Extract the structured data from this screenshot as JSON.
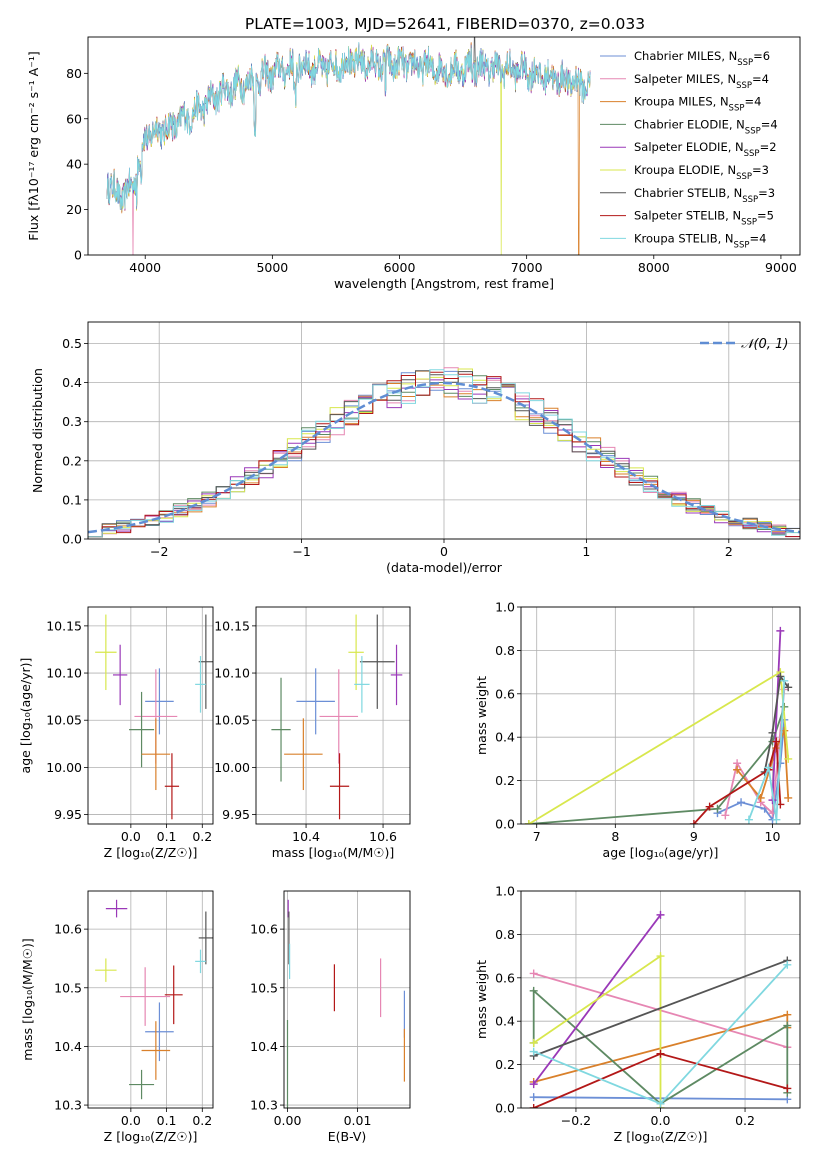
{
  "figure": {
    "title": "PLATE=1003, MJD=52641, FIBERID=0370, z=0.033"
  },
  "models": [
    {
      "name": "Chabrier MILES",
      "nssp": "6",
      "color": "#6c8fd6"
    },
    {
      "name": "Salpeter MILES",
      "nssp": "4",
      "color": "#e687b3"
    },
    {
      "name": "Kroupa MILES",
      "nssp": "4",
      "color": "#d9802b"
    },
    {
      "name": "Chabrier ELODIE",
      "nssp": "4",
      "color": "#5e8a63"
    },
    {
      "name": "Salpeter ELODIE",
      "nssp": "2",
      "color": "#9a38b8"
    },
    {
      "name": "Kroupa ELODIE",
      "nssp": "3",
      "color": "#d8e74d"
    },
    {
      "name": "Chabrier STELIB",
      "nssp": "3",
      "color": "#555555"
    },
    {
      "name": "Salpeter STELIB",
      "nssp": "5",
      "color": "#b31818"
    },
    {
      "name": "Kroupa STELIB",
      "nssp": "4",
      "color": "#80d8e0"
    }
  ],
  "chart_data": [
    {
      "id": "spectrum",
      "type": "line",
      "xlabel_text": "wavelength [Angstrom, rest frame]",
      "ylabel_text": "Flux [fλ10⁻¹⁷ erg cm⁻² s⁻¹ A⁻¹]",
      "xlim": [
        3550,
        9150
      ],
      "ylim": [
        0,
        96
      ],
      "xticks": [
        4000,
        5000,
        6000,
        7000,
        8000,
        9000
      ],
      "yticks": [
        0,
        20,
        40,
        60,
        80
      ],
      "grid": false,
      "legend": "right",
      "series_shape": [
        [
          3700,
          33
        ],
        [
          3800,
          25
        ],
        [
          3900,
          30
        ],
        [
          4000,
          52
        ],
        [
          4100,
          55
        ],
        [
          4200,
          56
        ],
        [
          4300,
          60
        ],
        [
          4400,
          63
        ],
        [
          4600,
          72
        ],
        [
          4800,
          76
        ],
        [
          5000,
          80
        ],
        [
          5200,
          84
        ],
        [
          5400,
          82
        ],
        [
          5600,
          85
        ],
        [
          5800,
          84
        ],
        [
          6000,
          84
        ],
        [
          6200,
          83
        ],
        [
          6400,
          81
        ],
        [
          6600,
          83
        ],
        [
          6800,
          82
        ],
        [
          7000,
          81
        ],
        [
          7200,
          78
        ],
        [
          7400,
          76
        ],
        [
          7500,
          74
        ]
      ],
      "dropouts": [
        [
          3905,
          "Salpeter MILES"
        ],
        [
          6800,
          "Kroupa ELODIE"
        ],
        [
          7410,
          "Kroupa MILES"
        ]
      ]
    },
    {
      "id": "residuals",
      "type": "bar",
      "xlabel_text": "(data-model)/error",
      "ylabel_text": "Normed distribution",
      "xlim": [
        -2.5,
        2.5
      ],
      "ylim": [
        0,
        0.555
      ],
      "xticks": [
        -2,
        -1,
        0,
        1,
        2
      ],
      "yticks": [
        0.0,
        0.1,
        0.2,
        0.3,
        0.4,
        0.5
      ],
      "grid": true,
      "legend": "top-right",
      "reference_label": "𝒩(0, 1)",
      "reference_color": "#5f8dd3",
      "bin_width": 0.1
    },
    {
      "id": "age-vs-Z",
      "type": "scatter",
      "xlabel_text": "Z [log₁₀(Z/Z☉)]",
      "ylabel_text": "age  [log₁₀(age/yr)]",
      "xlim": [
        -0.12,
        0.23
      ],
      "ylim": [
        9.94,
        10.17
      ],
      "xticks": [
        0.0,
        0.1,
        0.2
      ],
      "yticks": [
        9.95,
        10.0,
        10.05,
        10.1,
        10.15
      ],
      "grid": true,
      "points": [
        {
          "model": "Kroupa ELODIE",
          "x": -0.07,
          "xerr": 0.03,
          "y": 10.122,
          "yerr": 0.04
        },
        {
          "model": "Salpeter ELODIE",
          "x": -0.03,
          "xerr": 0.02,
          "y": 10.098,
          "yerr": 0.032
        },
        {
          "model": "Chabrier MILES",
          "x": 0.08,
          "xerr": 0.04,
          "y": 10.07,
          "yerr": 0.035
        },
        {
          "model": "Salpeter MILES",
          "x": 0.07,
          "xerr": 0.06,
          "y": 10.054,
          "yerr": 0.05
        },
        {
          "model": "Chabrier ELODIE",
          "x": 0.03,
          "xerr": 0.035,
          "y": 10.04,
          "yerr": 0.04
        },
        {
          "model": "Kroupa MILES",
          "x": 0.07,
          "xerr": 0.04,
          "y": 10.014,
          "yerr": 0.038
        },
        {
          "model": "Salpeter STELIB",
          "x": 0.115,
          "xerr": 0.02,
          "y": 9.98,
          "yerr": 0.035
        },
        {
          "model": "Chabrier STELIB",
          "x": 0.21,
          "xerr": 0.02,
          "y": 10.112,
          "yerr": 0.05
        },
        {
          "model": "Kroupa STELIB",
          "x": 0.195,
          "xerr": 0.015,
          "y": 10.088,
          "yerr": 0.03
        }
      ]
    },
    {
      "id": "age-vs-mass",
      "type": "scatter",
      "xlabel_text": "mass [log₁₀(M/M☉)]",
      "ylabel_text": "",
      "xlim": [
        10.27,
        10.67
      ],
      "ylim": [
        9.94,
        10.17
      ],
      "xticks": [
        10.4,
        10.6
      ],
      "yticks": [
        9.95,
        10.0,
        10.05,
        10.1,
        10.15
      ],
      "grid": true,
      "points": [
        {
          "model": "Kroupa ELODIE",
          "x": 10.53,
          "xerr": 0.02,
          "y": 10.122,
          "yerr": 0.04
        },
        {
          "model": "Salpeter ELODIE",
          "x": 10.635,
          "xerr": 0.015,
          "y": 10.098,
          "yerr": 0.032
        },
        {
          "model": "Chabrier MILES",
          "x": 10.425,
          "xerr": 0.05,
          "y": 10.07,
          "yerr": 0.035
        },
        {
          "model": "Salpeter MILES",
          "x": 10.485,
          "xerr": 0.05,
          "y": 10.054,
          "yerr": 0.05
        },
        {
          "model": "Chabrier ELODIE",
          "x": 10.335,
          "xerr": 0.025,
          "y": 10.04,
          "yerr": 0.055
        },
        {
          "model": "Kroupa MILES",
          "x": 10.393,
          "xerr": 0.05,
          "y": 10.014,
          "yerr": 0.038
        },
        {
          "model": "Salpeter STELIB",
          "x": 10.487,
          "xerr": 0.025,
          "y": 9.98,
          "yerr": 0.035
        },
        {
          "model": "Chabrier STELIB",
          "x": 10.585,
          "xerr": 0.045,
          "y": 10.112,
          "yerr": 0.05
        },
        {
          "model": "Kroupa STELIB",
          "x": 10.545,
          "xerr": 0.02,
          "y": 10.088,
          "yerr": 0.03
        }
      ]
    },
    {
      "id": "weight-vs-age",
      "type": "line",
      "xlabel_text": "age  [log₁₀(age/yr)]",
      "ylabel_text": "mass weight",
      "xlim": [
        6.8,
        10.35
      ],
      "ylim": [
        0,
        1
      ],
      "xticks": [
        7,
        8,
        9,
        10
      ],
      "yticks": [
        0.0,
        0.2,
        0.4,
        0.6,
        0.8,
        1.0
      ],
      "grid": true,
      "series": [
        {
          "model": "Chabrier MILES",
          "x": [
            9.3,
            9.6,
            9.9,
            10.0,
            10.1,
            10.15
          ],
          "y": [
            0.05,
            0.1,
            0.07,
            0.02,
            0.28,
            0.48
          ]
        },
        {
          "model": "Salpeter MILES",
          "x": [
            9.4,
            9.55,
            9.85,
            10.0,
            10.15
          ],
          "y": [
            0.04,
            0.28,
            0.1,
            0.05,
            0.62
          ]
        },
        {
          "model": "Kroupa MILES",
          "x": [
            9.55,
            9.85,
            10.05,
            10.15,
            10.2
          ],
          "y": [
            0.25,
            0.12,
            0.35,
            0.43,
            0.12
          ]
        },
        {
          "model": "Chabrier ELODIE",
          "x": [
            6.9,
            9.3,
            10.0,
            10.15
          ],
          "y": [
            0.0,
            0.07,
            0.38,
            0.54
          ]
        },
        {
          "model": "Salpeter ELODIE",
          "x": [
            10.0,
            10.1
          ],
          "y": [
            0.11,
            0.89
          ]
        },
        {
          "model": "Kroupa ELODIE",
          "x": [
            6.9,
            10.1,
            10.2
          ],
          "y": [
            0.0,
            0.7,
            0.3
          ]
        },
        {
          "model": "Chabrier STELIB",
          "x": [
            9.9,
            10.0,
            10.1,
            10.2
          ],
          "y": [
            0.24,
            0.42,
            0.68,
            0.63
          ]
        },
        {
          "model": "Salpeter STELIB",
          "x": [
            9.0,
            9.2,
            9.95,
            10.05,
            10.1
          ],
          "y": [
            0.0,
            0.08,
            0.25,
            0.38,
            0.09
          ]
        },
        {
          "model": "Kroupa STELIB",
          "x": [
            9.7,
            9.95,
            10.05,
            10.15
          ],
          "y": [
            0.02,
            0.26,
            0.02,
            0.66
          ]
        }
      ]
    },
    {
      "id": "mass-vs-Z",
      "type": "scatter",
      "xlabel_text": "Z [log₁₀(Z/Z☉)]",
      "ylabel_text": "mass [log₁₀(M/M☉)]",
      "xlim": [
        -0.12,
        0.23
      ],
      "ylim": [
        10.295,
        10.665
      ],
      "xticks": [
        0.0,
        0.1,
        0.2
      ],
      "yticks": [
        10.3,
        10.4,
        10.5,
        10.6
      ],
      "grid": true,
      "points": [
        {
          "model": "Salpeter ELODIE",
          "x": -0.04,
          "xerr": 0.03,
          "y": 10.635,
          "yerr": 0.015
        },
        {
          "model": "Kroupa ELODIE",
          "x": -0.07,
          "xerr": 0.03,
          "y": 10.53,
          "yerr": 0.02
        },
        {
          "model": "Salpeter MILES",
          "x": 0.04,
          "xerr": 0.07,
          "y": 10.485,
          "yerr": 0.05
        },
        {
          "model": "Salpeter STELIB",
          "x": 0.12,
          "xerr": 0.025,
          "y": 10.488,
          "yerr": 0.05
        },
        {
          "model": "Chabrier MILES",
          "x": 0.08,
          "xerr": 0.04,
          "y": 10.425,
          "yerr": 0.05
        },
        {
          "model": "Kroupa MILES",
          "x": 0.07,
          "xerr": 0.04,
          "y": 10.393,
          "yerr": 0.05
        },
        {
          "model": "Chabrier ELODIE",
          "x": 0.03,
          "xerr": 0.035,
          "y": 10.335,
          "yerr": 0.025
        },
        {
          "model": "Chabrier STELIB",
          "x": 0.21,
          "xerr": 0.02,
          "y": 10.585,
          "yerr": 0.045
        },
        {
          "model": "Kroupa STELIB",
          "x": 0.195,
          "xerr": 0.015,
          "y": 10.545,
          "yerr": 0.02
        }
      ]
    },
    {
      "id": "mass-vs-EBV",
      "type": "scatter",
      "xlabel_text": "E(B-V)",
      "ylabel_text": "",
      "xlim": [
        -0.0005,
        0.0175
      ],
      "ylim": [
        10.295,
        10.665
      ],
      "xticks": [
        0.0,
        0.01
      ],
      "ytick_values": [
        10.3,
        10.4,
        10.5,
        10.6
      ],
      "grid": true,
      "points": [
        {
          "model": "Salpeter ELODIE",
          "x": 0.0001,
          "xerr": 0,
          "y": 10.635,
          "yerr": 0.015
        },
        {
          "model": "Chabrier STELIB",
          "x": 0.0002,
          "xerr": 0,
          "y": 10.585,
          "yerr": 0.045
        },
        {
          "model": "Kroupa STELIB",
          "x": 0.0003,
          "xerr": 0,
          "y": 10.545,
          "yerr": 0.03
        },
        {
          "model": "Chabrier ELODIE",
          "x": 0.0,
          "xerr": 0,
          "y": 10.335,
          "yerr": 0.11
        },
        {
          "model": "Salpeter STELIB",
          "x": 0.0067,
          "xerr": 0,
          "y": 10.5,
          "yerr": 0.04
        },
        {
          "model": "Salpeter MILES",
          "x": 0.0133,
          "xerr": 0,
          "y": 10.5,
          "yerr": 0.05
        },
        {
          "model": "Chabrier MILES",
          "x": 0.0167,
          "xerr": 0,
          "y": 10.455,
          "yerr": 0.04
        },
        {
          "model": "Kroupa MILES",
          "x": 0.0167,
          "xerr": 0,
          "y": 10.385,
          "yerr": 0.045
        }
      ]
    },
    {
      "id": "weight-vs-Z",
      "type": "line",
      "xlabel_text": "Z [log₁₀(Z/Z☉)]",
      "ylabel_text": "mass weight",
      "xlim": [
        -0.33,
        0.33
      ],
      "ylim": [
        0,
        1
      ],
      "xticks": [
        -0.2,
        0.0,
        0.2
      ],
      "yticks": [
        0.0,
        0.2,
        0.4,
        0.6,
        0.8,
        1.0
      ],
      "grid": true,
      "series": [
        {
          "model": "Chabrier MILES",
          "x": [
            -0.3,
            0.3
          ],
          "y": [
            0.05,
            0.04
          ]
        },
        {
          "model": "Salpeter MILES",
          "x": [
            -0.3,
            0.3
          ],
          "y": [
            0.62,
            0.28
          ]
        },
        {
          "model": "Kroupa MILES",
          "x": [
            -0.3,
            0.3,
            0.3
          ],
          "y": [
            0.12,
            0.43,
            0.37
          ]
        },
        {
          "model": "Chabrier ELODIE",
          "x": [
            -0.3,
            -0.3,
            0.0,
            0.3,
            0.3
          ],
          "y": [
            0.3,
            0.54,
            0.02,
            0.38,
            0.07
          ]
        },
        {
          "model": "Salpeter ELODIE",
          "x": [
            -0.3,
            0.0
          ],
          "y": [
            0.11,
            0.89
          ]
        },
        {
          "model": "Kroupa ELODIE",
          "x": [
            -0.3,
            0.0,
            0.0
          ],
          "y": [
            0.3,
            0.7,
            0.0
          ]
        },
        {
          "model": "Chabrier STELIB",
          "x": [
            -0.3,
            0.3
          ],
          "y": [
            0.24,
            0.68
          ]
        },
        {
          "model": "Salpeter STELIB",
          "x": [
            -0.3,
            0.0,
            0.3
          ],
          "y": [
            0.0,
            0.25,
            0.09
          ]
        },
        {
          "model": "Kroupa STELIB",
          "x": [
            -0.3,
            0.0,
            0.3
          ],
          "y": [
            0.26,
            0.02,
            0.66
          ]
        }
      ]
    }
  ]
}
